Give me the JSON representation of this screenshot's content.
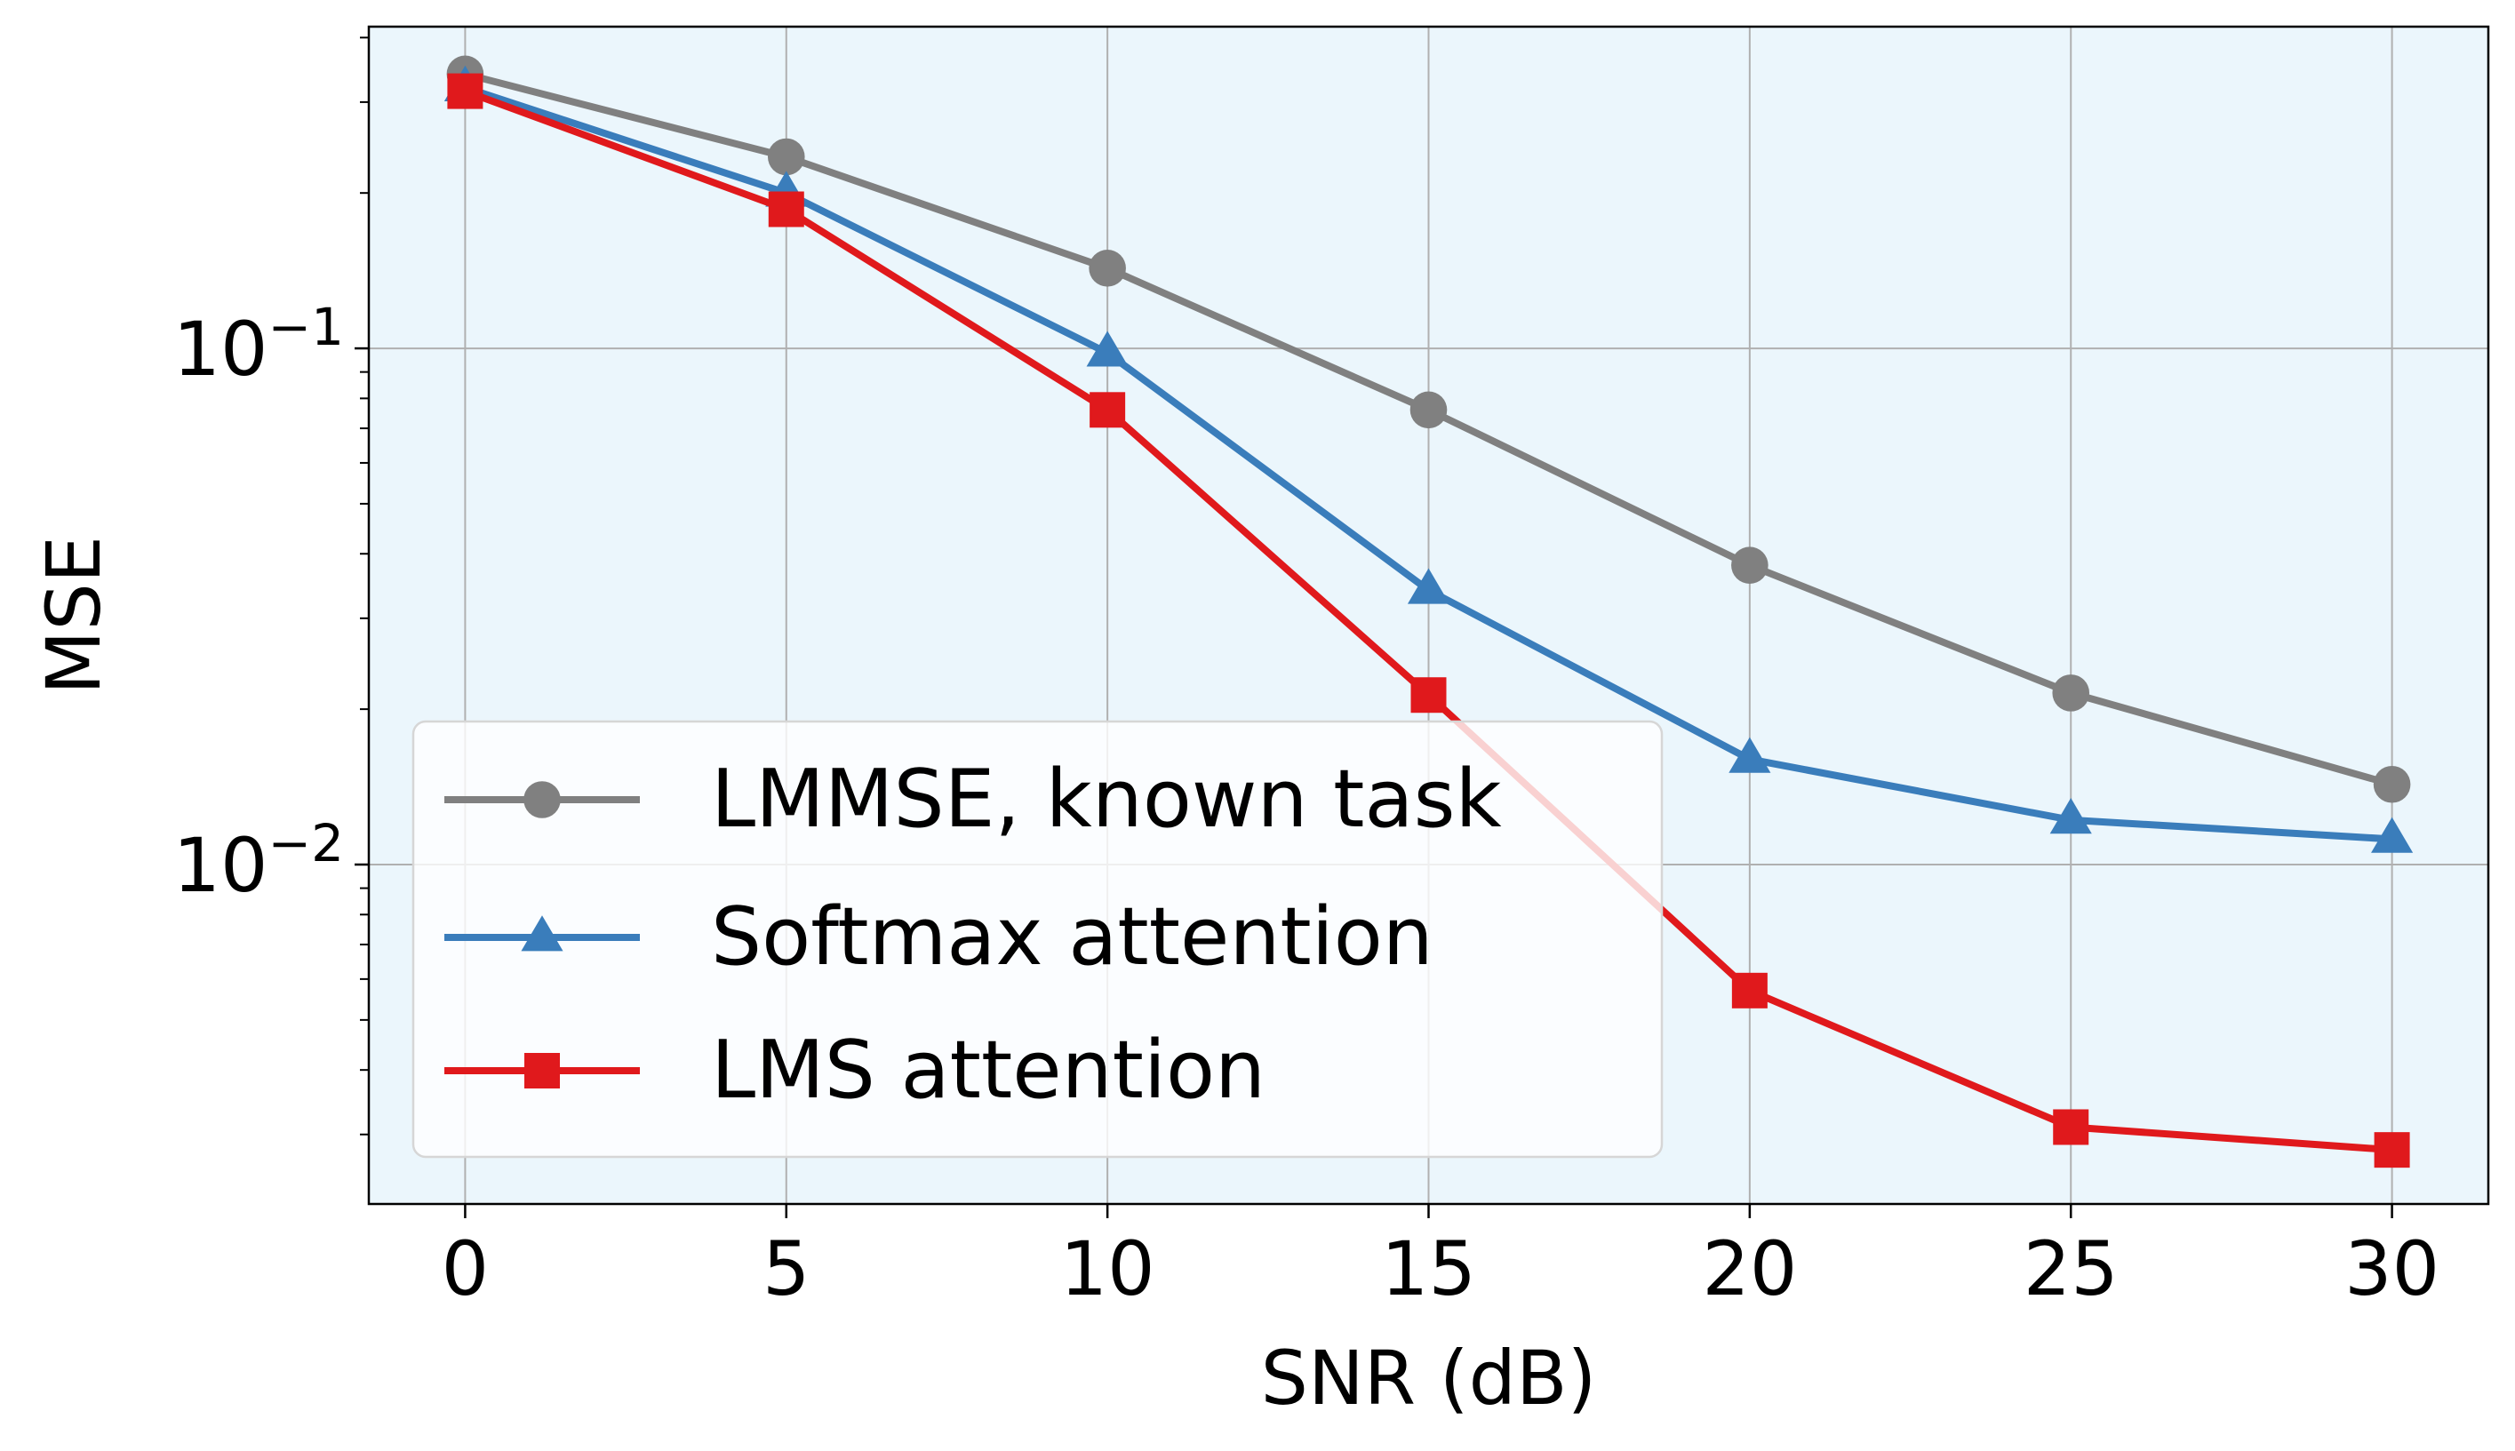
{
  "chart_data": {
    "type": "line",
    "title": "",
    "xlabel": "SNR (dB)",
    "ylabel": "MSE",
    "yscale": "log",
    "x": [
      0,
      5,
      10,
      15,
      20,
      25,
      30
    ],
    "xticks": [
      "0",
      "5",
      "10",
      "15",
      "20",
      "25",
      "30"
    ],
    "xlim": [
      -1.5,
      31.5
    ],
    "ylim": [
      0.0022,
      0.42
    ],
    "yticks": [
      {
        "base": "10",
        "exp": "−1",
        "value": 0.1
      },
      {
        "base": "10",
        "exp": "−2",
        "value": 0.01
      }
    ],
    "grid": true,
    "legend_position": "lower-left",
    "background": "#ebf6fc",
    "series": [
      {
        "name": "LMMSE, known task",
        "color": "#808080",
        "marker": "circle",
        "values": [
          0.34,
          0.235,
          0.143,
          0.076,
          0.038,
          0.0215,
          0.0143
        ]
      },
      {
        "name": "Softmax attention",
        "color": "#3a7dbb",
        "marker": "triangle",
        "values": [
          0.32,
          0.2,
          0.098,
          0.034,
          0.016,
          0.0122,
          0.0112
        ]
      },
      {
        "name": "LMS attention",
        "color": "#e0191c",
        "marker": "square",
        "values": [
          0.315,
          0.186,
          0.076,
          0.0213,
          0.0057,
          0.0031,
          0.0028
        ]
      }
    ]
  }
}
